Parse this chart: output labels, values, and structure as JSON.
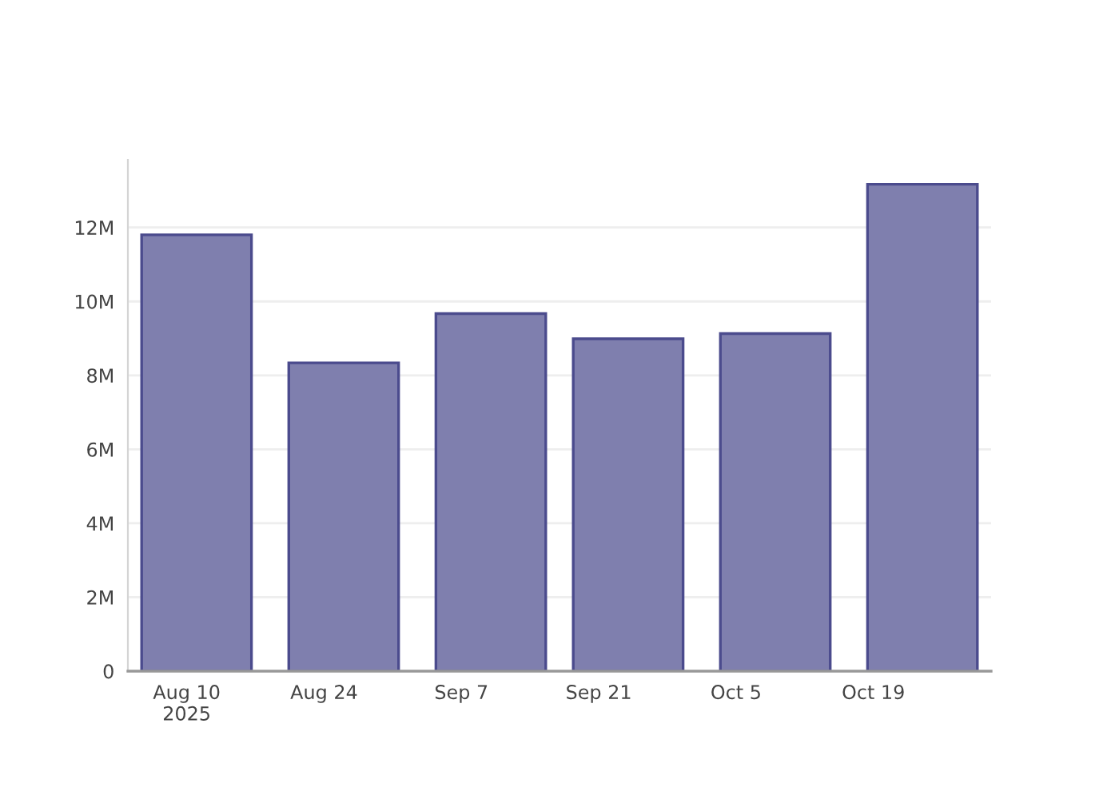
{
  "chart_data": {
    "type": "bar",
    "x": [
      "2025-08-11",
      "2025-08-26",
      "2025-09-10",
      "2025-09-24",
      "2025-10-09",
      "2025-10-24"
    ],
    "values": [
      11800000,
      8340000,
      9670000,
      8990000,
      9130000,
      13170000
    ],
    "color": "#7f7fae",
    "xlim": [
      "2025-08-04",
      "2025-10-31"
    ],
    "xticks": [
      {
        "value": "2025-08-10",
        "label": "Aug 10\n2025"
      },
      {
        "value": "2025-08-24",
        "label": "Aug 24"
      },
      {
        "value": "2025-09-07",
        "label": "Sep 7"
      },
      {
        "value": "2025-09-21",
        "label": "Sep 21"
      },
      {
        "value": "2025-10-05",
        "label": "Oct 5"
      },
      {
        "value": "2025-10-19",
        "label": "Oct 19"
      }
    ],
    "ylim": [
      0,
      13830000
    ],
    "yticks": [
      0,
      {
        "value": 2000000,
        "label": "2M"
      },
      {
        "value": 4000000,
        "label": "4M"
      },
      {
        "value": 6000000,
        "label": "6M"
      },
      {
        "value": 8000000,
        "label": "8M"
      },
      {
        "value": 10000000,
        "label": "10M"
      },
      {
        "value": 12000000,
        "label": "12M"
      }
    ],
    "grid": "y"
  }
}
